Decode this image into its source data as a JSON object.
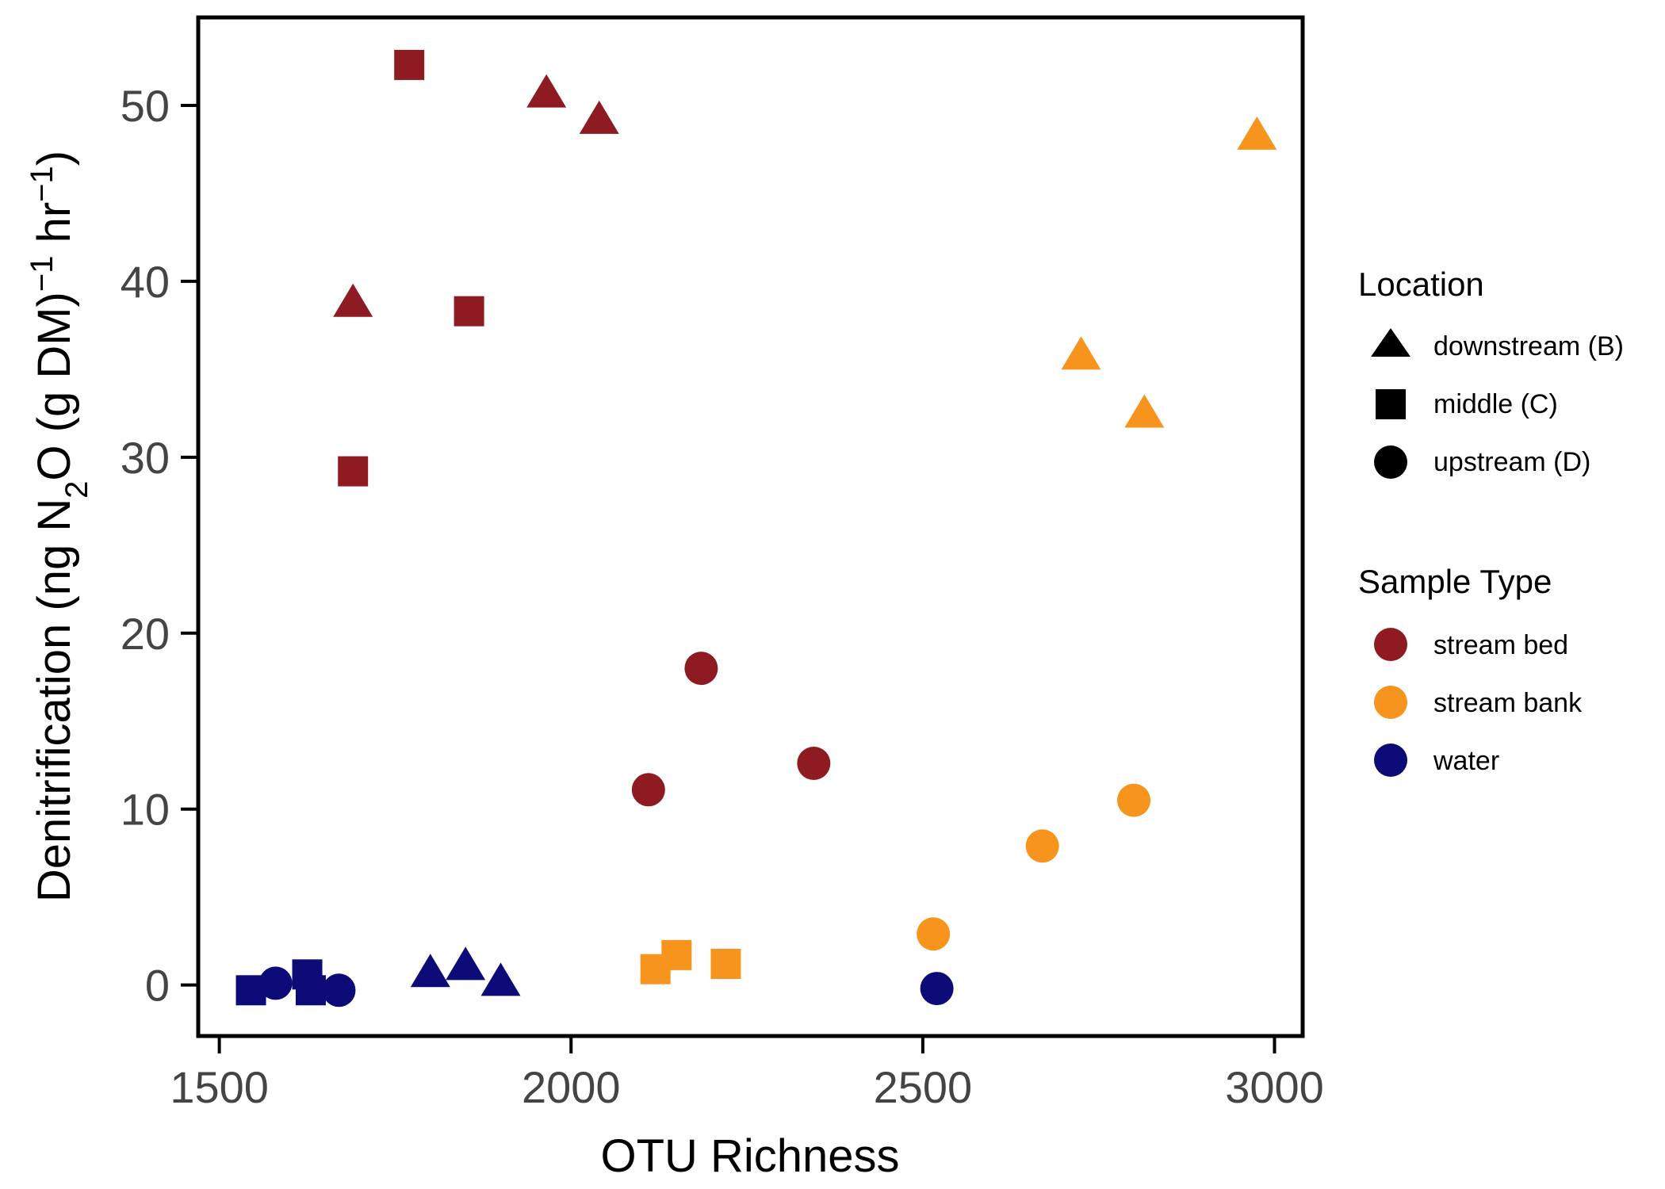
{
  "chart_data": {
    "type": "scatter",
    "xlabel": "OTU Richness",
    "ylabel": {
      "prefix": "Denitrification (ng N",
      "sub": "2",
      "mid": "O (g DM)",
      "sup1": "−1",
      "mid2": " hr",
      "sup2": "−1",
      "suffix": ")"
    },
    "xlim": [
      1470,
      3040
    ],
    "ylim": [
      -2.9,
      55
    ],
    "xticks": [
      1500,
      2000,
      2500,
      3000
    ],
    "xtick_labels": [
      "1500",
      "2000",
      "2500",
      "3000"
    ],
    "yticks": [
      0,
      10,
      20,
      30,
      40,
      50
    ],
    "ytick_labels": [
      "0",
      "10",
      "20",
      "30",
      "40",
      "50"
    ],
    "grid": false,
    "legend_placement": "right",
    "colors": {
      "stream_bed": "#8e1b22",
      "stream_bank": "#f7941d",
      "water": "#0c0b78",
      "legend_shape": "#000000"
    },
    "legends": [
      {
        "title": "Location",
        "kind": "shape",
        "entries": [
          {
            "label": "downstream (B)",
            "shape": "triangle"
          },
          {
            "label": "middle (C)",
            "shape": "square"
          },
          {
            "label": "upstream (D)",
            "shape": "circle"
          }
        ]
      },
      {
        "title": "Sample Type",
        "kind": "color",
        "entries": [
          {
            "label": "stream bed",
            "color": "#8e1b22"
          },
          {
            "label": "stream bank",
            "color": "#f7941d"
          },
          {
            "label": "water",
            "color": "#0c0b78"
          }
        ]
      }
    ],
    "points": [
      {
        "x": 1770,
        "y": 52.3,
        "location": "middle (C)",
        "sample_type": "stream bed"
      },
      {
        "x": 1965,
        "y": 50.6,
        "location": "downstream (B)",
        "sample_type": "stream bed"
      },
      {
        "x": 2040,
        "y": 49.1,
        "location": "downstream (B)",
        "sample_type": "stream bed"
      },
      {
        "x": 1690,
        "y": 38.7,
        "location": "downstream (B)",
        "sample_type": "stream bed"
      },
      {
        "x": 1855,
        "y": 38.3,
        "location": "middle (C)",
        "sample_type": "stream bed"
      },
      {
        "x": 1690,
        "y": 29.2,
        "location": "middle (C)",
        "sample_type": "stream bed"
      },
      {
        "x": 2185,
        "y": 18.0,
        "location": "upstream (D)",
        "sample_type": "stream bed"
      },
      {
        "x": 2345,
        "y": 12.6,
        "location": "upstream (D)",
        "sample_type": "stream bed"
      },
      {
        "x": 2110,
        "y": 11.1,
        "location": "upstream (D)",
        "sample_type": "stream bed"
      },
      {
        "x": 2975,
        "y": 48.2,
        "location": "downstream (B)",
        "sample_type": "stream bank"
      },
      {
        "x": 2725,
        "y": 35.7,
        "location": "downstream (B)",
        "sample_type": "stream bank"
      },
      {
        "x": 2815,
        "y": 32.4,
        "location": "downstream (B)",
        "sample_type": "stream bank"
      },
      {
        "x": 2800,
        "y": 10.5,
        "location": "upstream (D)",
        "sample_type": "stream bank"
      },
      {
        "x": 2670,
        "y": 7.9,
        "location": "upstream (D)",
        "sample_type": "stream bank"
      },
      {
        "x": 2515,
        "y": 2.9,
        "location": "upstream (D)",
        "sample_type": "stream bank"
      },
      {
        "x": 2150,
        "y": 1.7,
        "location": "middle (C)",
        "sample_type": "stream bank"
      },
      {
        "x": 2120,
        "y": 0.9,
        "location": "middle (C)",
        "sample_type": "stream bank"
      },
      {
        "x": 2220,
        "y": 1.2,
        "location": "middle (C)",
        "sample_type": "stream bank"
      },
      {
        "x": 1545,
        "y": -0.3,
        "location": "middle (C)",
        "sample_type": "water"
      },
      {
        "x": 1580,
        "y": 0.1,
        "location": "upstream (D)",
        "sample_type": "water"
      },
      {
        "x": 1625,
        "y": 0.6,
        "location": "middle (C)",
        "sample_type": "water"
      },
      {
        "x": 1630,
        "y": -0.3,
        "location": "middle (C)",
        "sample_type": "water"
      },
      {
        "x": 1670,
        "y": -0.3,
        "location": "upstream (D)",
        "sample_type": "water"
      },
      {
        "x": 1800,
        "y": 0.6,
        "location": "downstream (B)",
        "sample_type": "water"
      },
      {
        "x": 1850,
        "y": 1.0,
        "location": "downstream (B)",
        "sample_type": "water"
      },
      {
        "x": 1900,
        "y": 0.1,
        "location": "downstream (B)",
        "sample_type": "water"
      },
      {
        "x": 2520,
        "y": -0.2,
        "location": "upstream (D)",
        "sample_type": "water"
      }
    ]
  }
}
